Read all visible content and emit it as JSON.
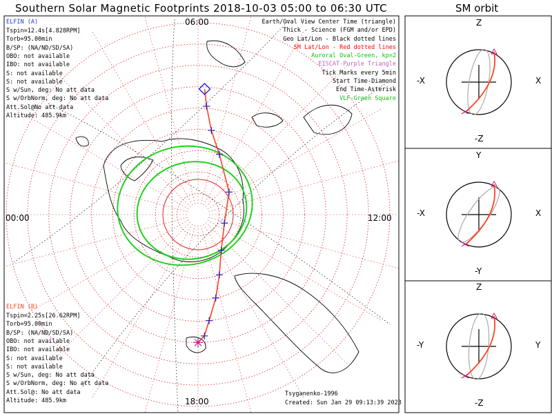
{
  "title": "Southern Solar Magnetic Footprints 2018-10-03 05:00 to 06:30 UTC",
  "orbit_title": "SM orbit",
  "clock_labels": {
    "top": "06:00",
    "left": "00:00",
    "right": "12:00",
    "bottom": "18:00"
  },
  "craft_a": {
    "name": "ELFIN (A)",
    "color": "#1f3fd0",
    "lines": [
      "Tspin=12.4s[4.828RPM]",
      "Torb=95.00min",
      "B/SP: (NA/ND/SD/SA)",
      "OBO: not available",
      "IBO: not available",
      "S: not available",
      "S: not available",
      "S w/Sun, deg: No att data",
      "S w/OrbNorm, deg: No att data",
      "Att.Sol@No att data",
      "Altitude: 485.9km"
    ]
  },
  "craft_b": {
    "name": "ELFIN (B)",
    "color": "#ff4020",
    "lines": [
      "Tspin=2.25s[26.62RPM]",
      "Torb=95.00min",
      "B/SP: (NA/ND/SD/SA)",
      "OBO: not available",
      "IBO: not available",
      "S: not available",
      "S: not available",
      "S w/Sun, deg: No att data",
      "S w/OrbNorm, deg: No att data",
      "Att.Sol@: No att data",
      "Altitude: 485.9km"
    ]
  },
  "legend": [
    {
      "text": "Earth/Oval View Center Time (triangle)",
      "color": "#000000"
    },
    {
      "text": "Thick - Science (FGM and/or EPD)",
      "color": "#000000"
    },
    {
      "text": "Geo Lat/Lon - Black dotted lines",
      "color": "#000000"
    },
    {
      "text": "SM Lat/Lon - Red dotted lines",
      "color": "#ff0000"
    },
    {
      "text": "Auroral Oval-Green, kp=2",
      "color": "#10c010"
    },
    {
      "text": "EISCAT-Purple Triangle",
      "color": "#c060c0"
    },
    {
      "text": "Tick Marks every 5min",
      "color": "#000000"
    },
    {
      "text": "Start Time-Diamond",
      "color": "#000000"
    },
    {
      "text": "End Time-Asterisk",
      "color": "#000000"
    },
    {
      "text": "VLF-Green Square",
      "color": "#10c010"
    }
  ],
  "footer": {
    "model": "Tsyganenko-1996",
    "created": "Created: Sun Jan 29 09:13:39 2023"
  },
  "orbit_axes": [
    {
      "top": "Z",
      "bottom": "-Z",
      "left": "-X",
      "right": "X"
    },
    {
      "top": "Y",
      "bottom": "-Y",
      "left": "-X",
      "right": "X"
    },
    {
      "top": "Z",
      "bottom": "-Z",
      "left": "-Y",
      "right": "Y"
    }
  ],
  "colors": {
    "sm_grid": "#e02020",
    "geo_grid": "#000000",
    "oval": "#20d020",
    "track": "#ff4020",
    "tick": "#2020c0",
    "start": "#2020c0",
    "end": "#c02080"
  },
  "chart_data": {
    "type": "scatter",
    "projection": "polar (south magnetic pole centered), magnetic local time around edge",
    "title": "Southern Solar Magnetic Footprints 2018-10-03 05:00 to 06:30 UTC",
    "mlt_labels": [
      "00:00",
      "06:00",
      "12:00",
      "18:00"
    ],
    "sm_lat_circles_deg": [
      -80,
      -70,
      -60,
      -50,
      -40,
      -30,
      -20,
      -10
    ],
    "series": [
      {
        "name": "ELFIN (A)",
        "tick_interval_min": 5,
        "points_mlt_lat": [
          [
            6.2,
            -31
          ],
          [
            6.3,
            -39
          ],
          [
            6.6,
            -50
          ],
          [
            7.3,
            -60
          ],
          [
            9.6,
            -72
          ],
          [
            13.2,
            -77
          ],
          [
            15.8,
            -70
          ],
          [
            16.7,
            -60
          ],
          [
            17.2,
            -50
          ],
          [
            17.6,
            -40
          ],
          [
            17.8,
            -33
          ],
          [
            18.0,
            -30
          ]
        ]
      }
    ],
    "auroral_oval_kp": 2
  }
}
